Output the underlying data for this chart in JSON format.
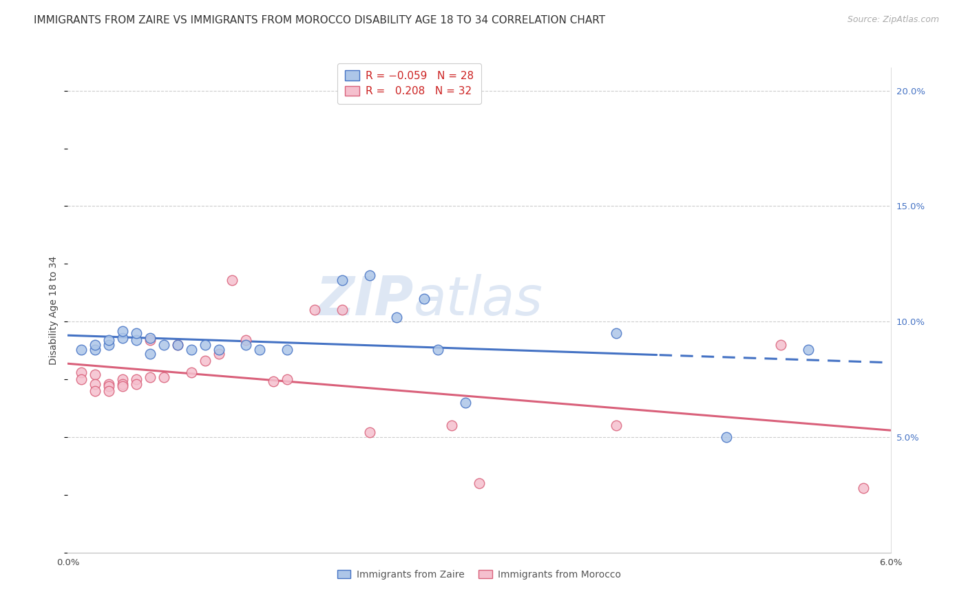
{
  "title": "IMMIGRANTS FROM ZAIRE VS IMMIGRANTS FROM MOROCCO DISABILITY AGE 18 TO 34 CORRELATION CHART",
  "source": "Source: ZipAtlas.com",
  "ylabel": "Disability Age 18 to 34",
  "xlim": [
    0.0,
    0.06
  ],
  "ylim": [
    0.0,
    0.21
  ],
  "xticks": [
    0.0,
    0.01,
    0.02,
    0.03,
    0.04,
    0.05,
    0.06
  ],
  "xtick_labels": [
    "0.0%",
    "",
    "",
    "",
    "",
    "",
    "6.0%"
  ],
  "yticks": [
    0.05,
    0.1,
    0.15,
    0.2
  ],
  "ytick_labels": [
    "5.0%",
    "10.0%",
    "15.0%",
    "20.0%"
  ],
  "color_blue": "#adc6e8",
  "color_pink": "#f5c0ce",
  "line_blue": "#4472c4",
  "line_pink": "#d9607a",
  "watermark_zip": "ZIP",
  "watermark_atlas": "atlas",
  "zaire_x": [
    0.001,
    0.002,
    0.002,
    0.003,
    0.003,
    0.004,
    0.004,
    0.005,
    0.005,
    0.006,
    0.006,
    0.007,
    0.008,
    0.009,
    0.01,
    0.011,
    0.013,
    0.014,
    0.016,
    0.02,
    0.022,
    0.024,
    0.026,
    0.027,
    0.029,
    0.04,
    0.048,
    0.054
  ],
  "zaire_y": [
    0.088,
    0.088,
    0.09,
    0.09,
    0.092,
    0.093,
    0.096,
    0.092,
    0.095,
    0.093,
    0.086,
    0.09,
    0.09,
    0.088,
    0.09,
    0.088,
    0.09,
    0.088,
    0.088,
    0.118,
    0.12,
    0.102,
    0.11,
    0.088,
    0.065,
    0.095,
    0.05,
    0.088
  ],
  "morocco_x": [
    0.001,
    0.001,
    0.002,
    0.002,
    0.002,
    0.003,
    0.003,
    0.003,
    0.004,
    0.004,
    0.004,
    0.005,
    0.005,
    0.006,
    0.006,
    0.007,
    0.008,
    0.009,
    0.01,
    0.011,
    0.012,
    0.013,
    0.015,
    0.016,
    0.018,
    0.02,
    0.022,
    0.028,
    0.03,
    0.04,
    0.052,
    0.058
  ],
  "morocco_y": [
    0.078,
    0.075,
    0.077,
    0.073,
    0.07,
    0.073,
    0.072,
    0.07,
    0.075,
    0.073,
    0.072,
    0.075,
    0.073,
    0.092,
    0.076,
    0.076,
    0.09,
    0.078,
    0.083,
    0.086,
    0.118,
    0.092,
    0.074,
    0.075,
    0.105,
    0.105,
    0.052,
    0.055,
    0.03,
    0.055,
    0.09,
    0.028
  ],
  "marker_size": 110,
  "title_fontsize": 11,
  "axis_label_fontsize": 10,
  "tick_fontsize": 9.5,
  "legend_fontsize": 11
}
